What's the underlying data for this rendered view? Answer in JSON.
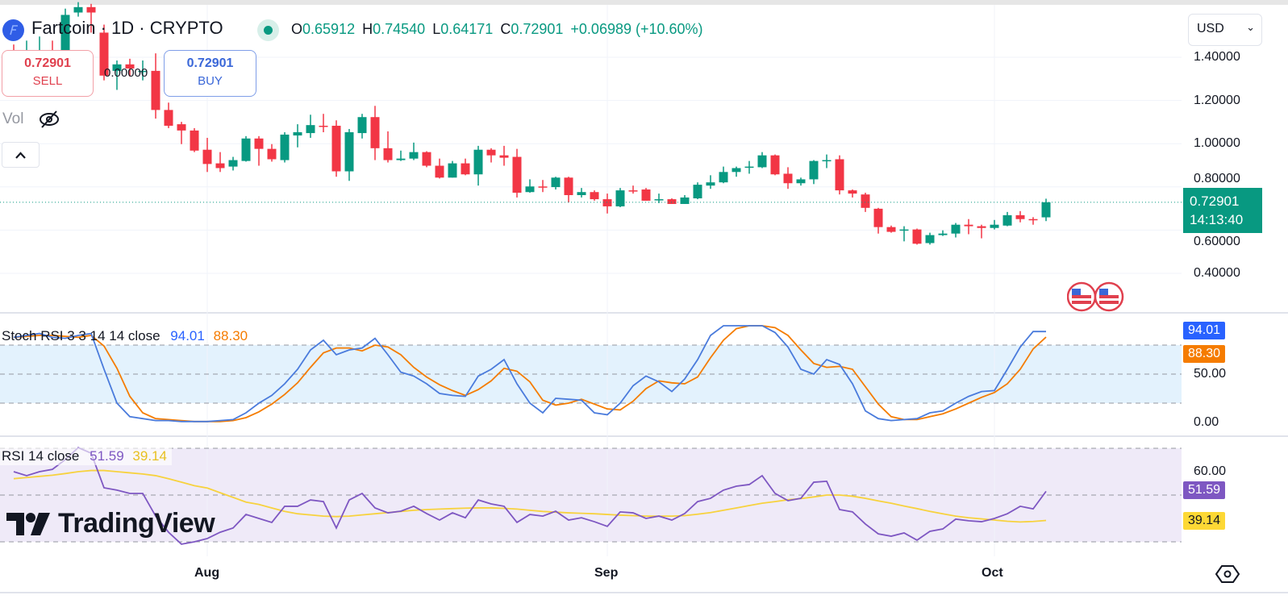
{
  "header": {
    "symbol": "Fartcoin",
    "title": "Fartcoin · 1D · CRYPTO",
    "ohlc": {
      "o_label": "O",
      "o": "0.65912",
      "h_label": "H",
      "h": "0.74540",
      "l_label": "L",
      "l": "0.64171",
      "c_label": "C",
      "c": "0.72901",
      "change": "+0.06989 (+10.60%)"
    },
    "market_status_icon": "market-open-dot"
  },
  "trade": {
    "sell_price": "0.72901",
    "sell_label": "SELL",
    "spread": "0.00000",
    "buy_price": "0.72901",
    "buy_label": "BUY"
  },
  "volume": {
    "label": "Vol",
    "icon": "eye-slash-icon"
  },
  "currency": {
    "label": "USD"
  },
  "price_marker": {
    "price": "0.72901",
    "countdown": "14:13:40"
  },
  "colors": {
    "up": "#089981",
    "down": "#f23645",
    "stoch_k": "#4a7bdc",
    "stoch_d": "#f57c00",
    "rsi": "#7e57c2",
    "rsi_ma": "#f7d23e",
    "stoch_band": "#e3f2fd",
    "rsi_band": "#efeaf8"
  },
  "watermark": "TradingView",
  "chart_data": {
    "type": "candlestick",
    "price_axis": {
      "ticks": [
        "1.40000",
        "1.20000",
        "1.00000",
        "0.80000",
        "0.60000",
        "0.40000"
      ],
      "tick_values": [
        1.4,
        1.2,
        1.0,
        0.8,
        0.6,
        0.4
      ]
    },
    "time_axis": {
      "ticks": [
        {
          "label": "Aug",
          "index": 15
        },
        {
          "label": "Sep",
          "index": 46
        },
        {
          "label": "Oct",
          "index": 76
        }
      ]
    },
    "candles_ohlc": [
      [
        1.433,
        1.459,
        1.385,
        1.422
      ],
      [
        1.418,
        1.477,
        1.367,
        1.433
      ],
      [
        1.404,
        1.496,
        1.33,
        1.426
      ],
      [
        1.426,
        1.477,
        1.348,
        1.404
      ],
      [
        1.43,
        1.625,
        1.418,
        1.596
      ],
      [
        1.607,
        1.655,
        1.588,
        1.632
      ],
      [
        1.632,
        1.647,
        1.514,
        1.607
      ],
      [
        1.514,
        1.551,
        1.293,
        1.315
      ],
      [
        1.337,
        1.385,
        1.249,
        1.367
      ],
      [
        1.367,
        1.393,
        1.311,
        1.348
      ],
      [
        1.337,
        1.385,
        1.293,
        1.337
      ],
      [
        1.337,
        1.418,
        1.116,
        1.156
      ],
      [
        1.156,
        1.19,
        1.072,
        1.083
      ],
      [
        1.09,
        1.101,
        0.998,
        1.061
      ],
      [
        1.061,
        1.072,
        0.961,
        0.968
      ],
      [
        0.972,
        1.027,
        0.869,
        0.906
      ],
      [
        0.909,
        0.961,
        0.869,
        0.887
      ],
      [
        0.894,
        0.939,
        0.876,
        0.924
      ],
      [
        0.92,
        1.035,
        0.917,
        1.024
      ],
      [
        1.024,
        1.035,
        0.898,
        0.976
      ],
      [
        0.976,
        0.998,
        0.917,
        0.928
      ],
      [
        0.924,
        1.053,
        0.913,
        1.042
      ],
      [
        1.038,
        1.09,
        0.983,
        1.053
      ],
      [
        1.049,
        1.134,
        1.027,
        1.086
      ],
      [
        1.083,
        1.138,
        1.053,
        1.079
      ],
      [
        1.083,
        1.108,
        0.847,
        0.872
      ],
      [
        0.872,
        1.068,
        0.828,
        1.053
      ],
      [
        1.049,
        1.138,
        1.024,
        1.123
      ],
      [
        1.123,
        1.175,
        0.924,
        0.979
      ],
      [
        0.979,
        1.057,
        0.913,
        0.924
      ],
      [
        0.924,
        0.968,
        0.92,
        0.931
      ],
      [
        0.931,
        1.005,
        0.924,
        0.961
      ],
      [
        0.961,
        0.965,
        0.891,
        0.898
      ],
      [
        0.898,
        0.931,
        0.839,
        0.843
      ],
      [
        0.843,
        0.92,
        0.843,
        0.909
      ],
      [
        0.909,
        0.931,
        0.854,
        0.858
      ],
      [
        0.858,
        0.99,
        0.806,
        0.972
      ],
      [
        0.972,
        0.979,
        0.913,
        0.946
      ],
      [
        0.946,
        0.99,
        0.898,
        0.935
      ],
      [
        0.939,
        0.976,
        0.751,
        0.773
      ],
      [
        0.776,
        0.835,
        0.773,
        0.802
      ],
      [
        0.802,
        0.832,
        0.776,
        0.799
      ],
      [
        0.799,
        0.847,
        0.788,
        0.843
      ],
      [
        0.843,
        0.847,
        0.728,
        0.762
      ],
      [
        0.762,
        0.795,
        0.751,
        0.776
      ],
      [
        0.776,
        0.784,
        0.736,
        0.743
      ],
      [
        0.743,
        0.769,
        0.677,
        0.71
      ],
      [
        0.71,
        0.795,
        0.706,
        0.784
      ],
      [
        0.784,
        0.806,
        0.769,
        0.78
      ],
      [
        0.788,
        0.795,
        0.736,
        0.736
      ],
      [
        0.74,
        0.769,
        0.725,
        0.743
      ],
      [
        0.743,
        0.747,
        0.721,
        0.721
      ],
      [
        0.721,
        0.762,
        0.721,
        0.751
      ],
      [
        0.747,
        0.821,
        0.743,
        0.81
      ],
      [
        0.806,
        0.854,
        0.791,
        0.821
      ],
      [
        0.821,
        0.894,
        0.817,
        0.869
      ],
      [
        0.869,
        0.894,
        0.847,
        0.887
      ],
      [
        0.891,
        0.92,
        0.861,
        0.894
      ],
      [
        0.891,
        0.961,
        0.887,
        0.946
      ],
      [
        0.946,
        0.95,
        0.854,
        0.858
      ],
      [
        0.861,
        0.891,
        0.791,
        0.817
      ],
      [
        0.817,
        0.843,
        0.806,
        0.835
      ],
      [
        0.835,
        0.924,
        0.813,
        0.92
      ],
      [
        0.92,
        0.95,
        0.887,
        0.924
      ],
      [
        0.928,
        0.946,
        0.765,
        0.784
      ],
      [
        0.784,
        0.788,
        0.751,
        0.769
      ],
      [
        0.765,
        0.773,
        0.684,
        0.703
      ],
      [
        0.699,
        0.703,
        0.584,
        0.614
      ],
      [
        0.614,
        0.621,
        0.588,
        0.592
      ],
      [
        0.599,
        0.618,
        0.548,
        0.603
      ],
      [
        0.603,
        0.607,
        0.533,
        0.537
      ],
      [
        0.54,
        0.588,
        0.533,
        0.577
      ],
      [
        0.577,
        0.599,
        0.573,
        0.584
      ],
      [
        0.584,
        0.633,
        0.566,
        0.625
      ],
      [
        0.625,
        0.651,
        0.581,
        0.618
      ],
      [
        0.618,
        0.625,
        0.562,
        0.61
      ],
      [
        0.61,
        0.647,
        0.603,
        0.625
      ],
      [
        0.621,
        0.684,
        0.618,
        0.669
      ],
      [
        0.669,
        0.688,
        0.636,
        0.651
      ],
      [
        0.651,
        0.66,
        0.625,
        0.647
      ],
      [
        0.65912,
        0.7454,
        0.64171,
        0.72901
      ]
    ],
    "indicators": {
      "stoch_rsi": {
        "label": "Stoch RSI 3 3 14 14 close",
        "k_value": "94.01",
        "d_value": "88.30",
        "ticks": [
          "50.00",
          "0.00"
        ],
        "tick_values": [
          50,
          0
        ],
        "bands": [
          20,
          50,
          80
        ],
        "ylim": [
          0,
          100
        ],
        "k": [
          88,
          90,
          92,
          88,
          87,
          90,
          92,
          55,
          20,
          6,
          4,
          2,
          2,
          1,
          1,
          1,
          2,
          3,
          10,
          20,
          28,
          40,
          55,
          75,
          85,
          70,
          75,
          77,
          87,
          70,
          52,
          48,
          40,
          30,
          28,
          27,
          48,
          55,
          65,
          40,
          20,
          10,
          25,
          24,
          23,
          10,
          8,
          20,
          38,
          48,
          42,
          32,
          45,
          65,
          90,
          100,
          100,
          100,
          100,
          93,
          78,
          55,
          50,
          65,
          60,
          40,
          12,
          4,
          2,
          3,
          4,
          10,
          12,
          20,
          27,
          32,
          33,
          55,
          78,
          94,
          94.01
        ],
        "d": [
          88,
          89,
          90,
          90,
          89,
          88,
          90,
          79,
          56,
          27,
          10,
          4,
          3,
          2,
          1,
          1,
          1,
          2,
          5,
          11,
          19,
          29,
          41,
          57,
          72,
          77,
          77,
          74,
          80,
          78,
          70,
          57,
          47,
          39,
          33,
          28,
          34,
          43,
          56,
          53,
          42,
          23,
          18,
          20,
          24,
          19,
          14,
          13,
          22,
          35,
          43,
          41,
          40,
          47,
          67,
          85,
          97,
          100,
          100,
          98,
          90,
          75,
          61,
          57,
          58,
          55,
          37,
          19,
          6,
          3,
          3,
          6,
          9,
          14,
          20,
          26,
          31,
          40,
          55,
          76,
          88.3
        ]
      },
      "rsi": {
        "label": "RSI 14 close",
        "rsi_value": "51.59",
        "ma_value": "39.14",
        "ticks": [
          "60.00"
        ],
        "tick_values": [
          60
        ],
        "bands": [
          30,
          50,
          70
        ],
        "rsi": [
          60,
          58.3,
          60,
          61,
          65.2,
          70.3,
          67.9,
          53.1,
          52.1,
          50.7,
          50.7,
          41,
          34.1,
          29,
          30,
          31.4,
          34.1,
          35.9,
          41.7,
          40,
          38.3,
          45.2,
          45.2,
          47.9,
          47.2,
          35.9,
          47.9,
          50.7,
          44.5,
          42.4,
          43.1,
          45.2,
          42.1,
          39.3,
          42.4,
          40.3,
          47.9,
          46.2,
          45.2,
          38.3,
          41.7,
          41,
          43.1,
          39.3,
          40.3,
          38.6,
          36.6,
          42.8,
          42.4,
          40,
          41,
          39.3,
          42.1,
          47.2,
          48.6,
          52.1,
          53.8,
          54.5,
          58.3,
          50.7,
          47.6,
          48.6,
          55.5,
          55.9,
          43.8,
          42.8,
          37.6,
          33.4,
          32.4,
          33.8,
          30.7,
          34.5,
          35.5,
          39.7,
          39,
          38.6,
          40,
          42,
          45.2,
          44.1,
          51.59
        ],
        "ma": [
          57,
          57.5,
          58,
          58.5,
          59.2,
          60,
          60.5,
          60.5,
          60,
          59.5,
          59,
          58.3,
          57,
          55.5,
          54,
          53,
          51,
          49,
          47,
          46,
          44.5,
          43,
          42,
          41.5,
          41,
          40.8,
          41,
          41.5,
          42,
          42.5,
          43,
          43.5,
          43.8,
          44,
          44.2,
          44.4,
          44.5,
          44.5,
          44.3,
          44,
          43.5,
          43,
          42.7,
          42.4,
          42.2,
          42,
          41.7,
          41.4,
          41.2,
          41,
          41,
          41,
          41.2,
          41.8,
          42.5,
          43.5,
          44.5,
          45.5,
          46.5,
          47.2,
          48,
          48.5,
          49.2,
          50,
          50,
          49.5,
          48.6,
          47.5,
          46.5,
          45.3,
          44.2,
          43,
          42,
          41,
          40.3,
          39.8,
          39.3,
          38.8,
          38.5,
          38.7,
          39.14
        ]
      }
    }
  }
}
